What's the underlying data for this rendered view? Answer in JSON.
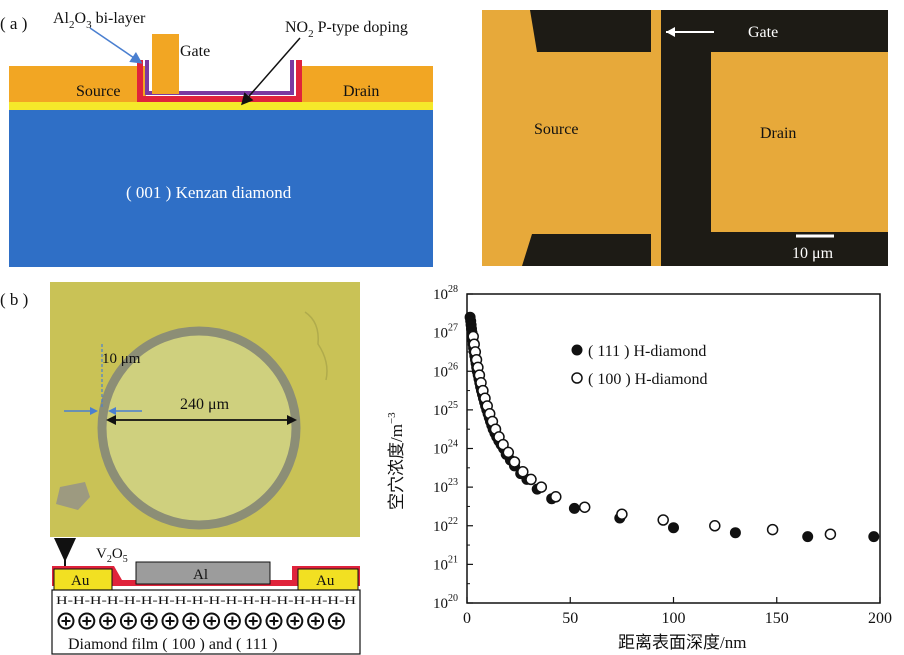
{
  "panel_a": {
    "label": "( a )",
    "schematic": {
      "al2o3_label_main": "Al",
      "al2o3_sub1": "2",
      "al2o3_mid": "O",
      "al2o3_sub2": "3",
      "al2o3_tail": " bi-layer",
      "gate": "Gate",
      "no2_main": "NO",
      "no2_sub": "2",
      "no2_tail": " P-type doping",
      "source": "Source",
      "drain": "Drain",
      "substrate": "( 001 ) Kenzan diamond",
      "colors": {
        "substrate": "#2f6fc6",
        "metal": "#f2a623",
        "oxide": "#7b3aa0",
        "doping": "#e0233b",
        "layer": "#f5e92a"
      }
    },
    "micrograph": {
      "gate": "Gate",
      "source": "Source",
      "drain": "Drain",
      "scale": "10 μm",
      "colors": {
        "gold": "#e7a93a",
        "dark": "#1d1b15"
      }
    }
  },
  "panel_b": {
    "label": "( b )",
    "micrograph": {
      "ring_width": "10 μm",
      "diameter": "240 μm",
      "colors": {
        "background": "#c9c256",
        "ring": "#8c8e76",
        "inner": "#cfd07e"
      }
    },
    "device": {
      "v2o5_main": "V",
      "v2o5_sub1": "2",
      "v2o5_mid": "O",
      "v2o5_sub2": "5",
      "au_left": "Au",
      "au_right": "Au",
      "al": "Al",
      "h_row": "H-H-H-H-H-H-H-H-H-H-H-H-H-H-H-H-H-H",
      "film": "Diamond film ( 100 ) and ( 111 )"
    }
  },
  "chart_data": {
    "type": "scatter",
    "xlabel": "距离表面深度/nm",
    "ylabel": "空穴浓度/m",
    "ylabel_sup": "−3",
    "xlim": [
      0,
      200
    ],
    "ylim_log10": [
      20,
      28
    ],
    "xticks": [
      0,
      50,
      100,
      150,
      200
    ],
    "yticks": [
      {
        "base": "10",
        "exp": "28"
      },
      {
        "base": "10",
        "exp": "27"
      },
      {
        "base": "10",
        "exp": "26"
      },
      {
        "base": "10",
        "exp": "25"
      },
      {
        "base": "10",
        "exp": "24"
      },
      {
        "base": "10",
        "exp": "23"
      },
      {
        "base": "10",
        "exp": "22"
      },
      {
        "base": "10",
        "exp": "21"
      },
      {
        "base": "10",
        "exp": "20"
      }
    ],
    "legend_position": "top-center",
    "series": [
      {
        "name": "( 111 ) H-diamond",
        "marker": "filled-circle",
        "points": [
          [
            1.5,
            27.4
          ],
          [
            1.8,
            27.3
          ],
          [
            2.0,
            27.2
          ],
          [
            2.2,
            27.1
          ],
          [
            2.4,
            27.0
          ],
          [
            2.6,
            26.9
          ],
          [
            2.8,
            26.8
          ],
          [
            3.0,
            26.7
          ],
          [
            3.2,
            26.6
          ],
          [
            3.5,
            26.5
          ],
          [
            3.8,
            26.4
          ],
          [
            4.1,
            26.3
          ],
          [
            4.4,
            26.2
          ],
          [
            4.7,
            26.1
          ],
          [
            5.0,
            26.0
          ],
          [
            5.4,
            25.9
          ],
          [
            5.8,
            25.8
          ],
          [
            6.2,
            25.7
          ],
          [
            6.6,
            25.6
          ],
          [
            7.0,
            25.5
          ],
          [
            7.5,
            25.4
          ],
          [
            8.0,
            25.3
          ],
          [
            8.5,
            25.2
          ],
          [
            9.0,
            25.1
          ],
          [
            9.6,
            25.0
          ],
          [
            10.2,
            24.9
          ],
          [
            10.8,
            24.8
          ],
          [
            11.4,
            24.7
          ],
          [
            12.0,
            24.6
          ],
          [
            12.7,
            24.5
          ],
          [
            13.5,
            24.4
          ],
          [
            14.4,
            24.3
          ],
          [
            15.4,
            24.2
          ],
          [
            16.5,
            24.1
          ],
          [
            17.7,
            24.0
          ],
          [
            19.0,
            23.85
          ],
          [
            21.0,
            23.7
          ],
          [
            23.0,
            23.55
          ],
          [
            26.0,
            23.35
          ],
          [
            29.0,
            23.2
          ],
          [
            34.0,
            22.95
          ],
          [
            41.0,
            22.7
          ],
          [
            52.0,
            22.45
          ],
          [
            74.0,
            22.2
          ],
          [
            100.0,
            21.95
          ],
          [
            130.0,
            21.82
          ],
          [
            165.0,
            21.72
          ],
          [
            197.0,
            21.72
          ]
        ]
      },
      {
        "name": "( 100 ) H-diamond",
        "marker": "open-circle",
        "points": [
          [
            3.0,
            26.9
          ],
          [
            3.5,
            26.7
          ],
          [
            4.0,
            26.5
          ],
          [
            4.6,
            26.3
          ],
          [
            5.3,
            26.1
          ],
          [
            6.0,
            25.9
          ],
          [
            6.8,
            25.7
          ],
          [
            7.7,
            25.5
          ],
          [
            8.7,
            25.3
          ],
          [
            9.8,
            25.1
          ],
          [
            11.0,
            24.9
          ],
          [
            12.3,
            24.7
          ],
          [
            13.8,
            24.5
          ],
          [
            15.5,
            24.3
          ],
          [
            17.5,
            24.1
          ],
          [
            20.0,
            23.9
          ],
          [
            23.0,
            23.65
          ],
          [
            27.0,
            23.4
          ],
          [
            31.0,
            23.2
          ],
          [
            36.0,
            23.0
          ],
          [
            43.0,
            22.75
          ],
          [
            57.0,
            22.48
          ],
          [
            75.0,
            22.3
          ],
          [
            95.0,
            22.15
          ],
          [
            120.0,
            22.0
          ],
          [
            148.0,
            21.9
          ],
          [
            176.0,
            21.78
          ]
        ]
      }
    ]
  }
}
